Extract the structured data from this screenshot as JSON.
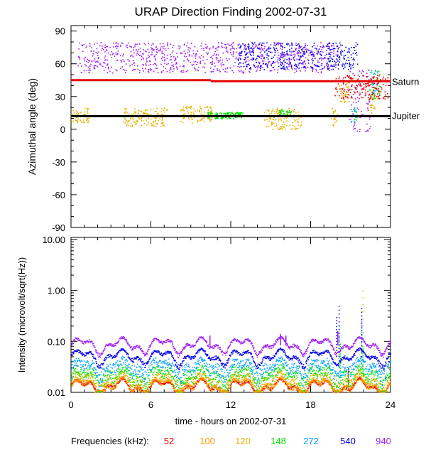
{
  "title": "URAP Direction Finding  2002-07-31",
  "colors": {
    "saturn_line": "#e60000",
    "jupiter_line": "#000000",
    "f52": "#e60000",
    "f100": "#ff9900",
    "f120": "#e6b400",
    "f148": "#00e600",
    "f272": "#00a0ff",
    "f540": "#0000e6",
    "f940": "#a020f0"
  },
  "legend": {
    "label": "Frequencies (kHz):",
    "items": [
      {
        "text": "52",
        "color": "#e60000"
      },
      {
        "text": "100",
        "color": "#ff9900"
      },
      {
        "text": "120",
        "color": "#e6b400"
      },
      {
        "text": "148",
        "color": "#00e600"
      },
      {
        "text": "272",
        "color": "#00a0ff"
      },
      {
        "text": "540",
        "color": "#0000e6"
      },
      {
        "text": "940",
        "color": "#a020f0"
      }
    ]
  },
  "chart_data": [
    {
      "type": "scatter",
      "panel": "top",
      "title": "URAP Direction Finding  2002-07-31",
      "ylabel": "Azimuthal angle (deg)",
      "xlim": [
        0,
        24
      ],
      "ylim": [
        -90,
        95
      ],
      "yticks": [
        90,
        60,
        30,
        0,
        -30,
        -60,
        -90
      ],
      "reference_lines": [
        {
          "name": "Saturn",
          "y_start": 45,
          "y_end": 44,
          "color": "#e60000"
        },
        {
          "name": "Jupiter",
          "y": 12,
          "color": "#000000"
        }
      ],
      "series": [
        {
          "color": "#e6b400",
          "clusters": [
            {
              "x": [
                0.0,
                1.3
              ],
              "y": [
                6,
                20
              ]
            },
            {
              "x": [
                3.9,
                7.2
              ],
              "y": [
                3,
                20
              ]
            },
            {
              "x": [
                8.2,
                10.6
              ],
              "y": [
                6,
                22
              ]
            },
            {
              "x": [
                14.5,
                17.3
              ],
              "y": [
                0,
                20
              ]
            },
            {
              "x": [
                19.5,
                20.0
              ],
              "y": [
                3,
                20
              ]
            },
            {
              "x": [
                20.1,
                20.9
              ],
              "y": [
                25,
                45
              ]
            },
            {
              "x": [
                22.3,
                22.8
              ],
              "y": [
                15,
                30
              ]
            }
          ]
        },
        {
          "color": "#00e600",
          "clusters": [
            {
              "x": [
                10.2,
                12.9
              ],
              "y": [
                10,
                16
              ]
            },
            {
              "x": [
                15.6,
                16.5
              ],
              "y": [
                12,
                18
              ]
            },
            {
              "x": [
                21.2,
                21.5
              ],
              "y": [
                8,
                20
              ]
            },
            {
              "x": [
                22.3,
                23.2
              ],
              "y": [
                28,
                55
              ]
            }
          ]
        },
        {
          "color": "#00a0ff",
          "clusters": [
            {
              "x": [
                21.0,
                21.4
              ],
              "y": [
                5,
                20
              ]
            },
            {
              "x": [
                22.5,
                23.0
              ],
              "y": [
                30,
                55
              ]
            }
          ]
        },
        {
          "color": "#a020f0",
          "clusters": [
            {
              "x": [
                0.5,
                20.0
              ],
              "y": [
                52,
                80
              ]
            },
            {
              "x": [
                20.8,
                22.5
              ],
              "y": [
                -2,
                55
              ]
            }
          ]
        },
        {
          "color": "#e60000",
          "clusters": [
            {
              "x": [
                19.8,
                23.8
              ],
              "y": [
                28,
                50
              ]
            }
          ]
        },
        {
          "color": "#0000e6",
          "clusters": [
            {
              "x": [
                12.5,
                21.5
              ],
              "y": [
                55,
                80
              ]
            }
          ]
        }
      ]
    },
    {
      "type": "line",
      "panel": "bottom",
      "ylabel": "Intensity (microvolt/sqrt(Hz))",
      "xlabel": "time - hours on 2002-07-31",
      "xlim": [
        0,
        24
      ],
      "xticks": [
        0,
        6,
        12,
        18,
        24
      ],
      "yscale": "log",
      "ylim": [
        0.01,
        11
      ],
      "yticks": [
        "10.00",
        "1.00",
        "0.10",
        "0.01"
      ],
      "series": [
        {
          "name": "940",
          "color": "#a020f0",
          "base": 0.088,
          "spread": 0.012,
          "spikes": [
            {
              "x": 10.4,
              "y": 0.13
            },
            {
              "x": 15.7,
              "y": 0.14
            },
            {
              "x": 16.1,
              "y": 0.13
            },
            {
              "x": 20.0,
              "y": 0.16
            }
          ]
        },
        {
          "name": "540",
          "color": "#0000e6",
          "base": 0.052,
          "spread": 0.008,
          "spikes": [
            {
              "x": 19.9,
              "y": 0.3
            },
            {
              "x": 20.1,
              "y": 0.5
            },
            {
              "x": 21.8,
              "y": 0.45
            }
          ]
        },
        {
          "name": "272",
          "color": "#00a0ff",
          "base": 0.032,
          "spread": 0.015,
          "spikes": [
            {
              "x": 20.1,
              "y": 0.2
            },
            {
              "x": 21.8,
              "y": 0.25
            }
          ]
        },
        {
          "name": "148",
          "color": "#00e600",
          "base": 0.022,
          "spread": 0.012,
          "spikes": [
            {
              "x": 20.2,
              "y": 0.09
            },
            {
              "x": 21.9,
              "y": 0.08
            }
          ]
        },
        {
          "name": "120",
          "color": "#e6b400",
          "base": 0.017,
          "spread": 0.008,
          "spikes": [
            {
              "x": 21.9,
              "y": 1.0
            }
          ]
        },
        {
          "name": "100",
          "color": "#ff9900",
          "base": 0.014,
          "spread": 0.004,
          "spikes": []
        },
        {
          "name": "52",
          "color": "#e60000",
          "base": 0.0135,
          "spread": 0.002,
          "spikes": [
            {
              "x": 20.8,
              "y": 0.03
            }
          ]
        }
      ]
    }
  ]
}
